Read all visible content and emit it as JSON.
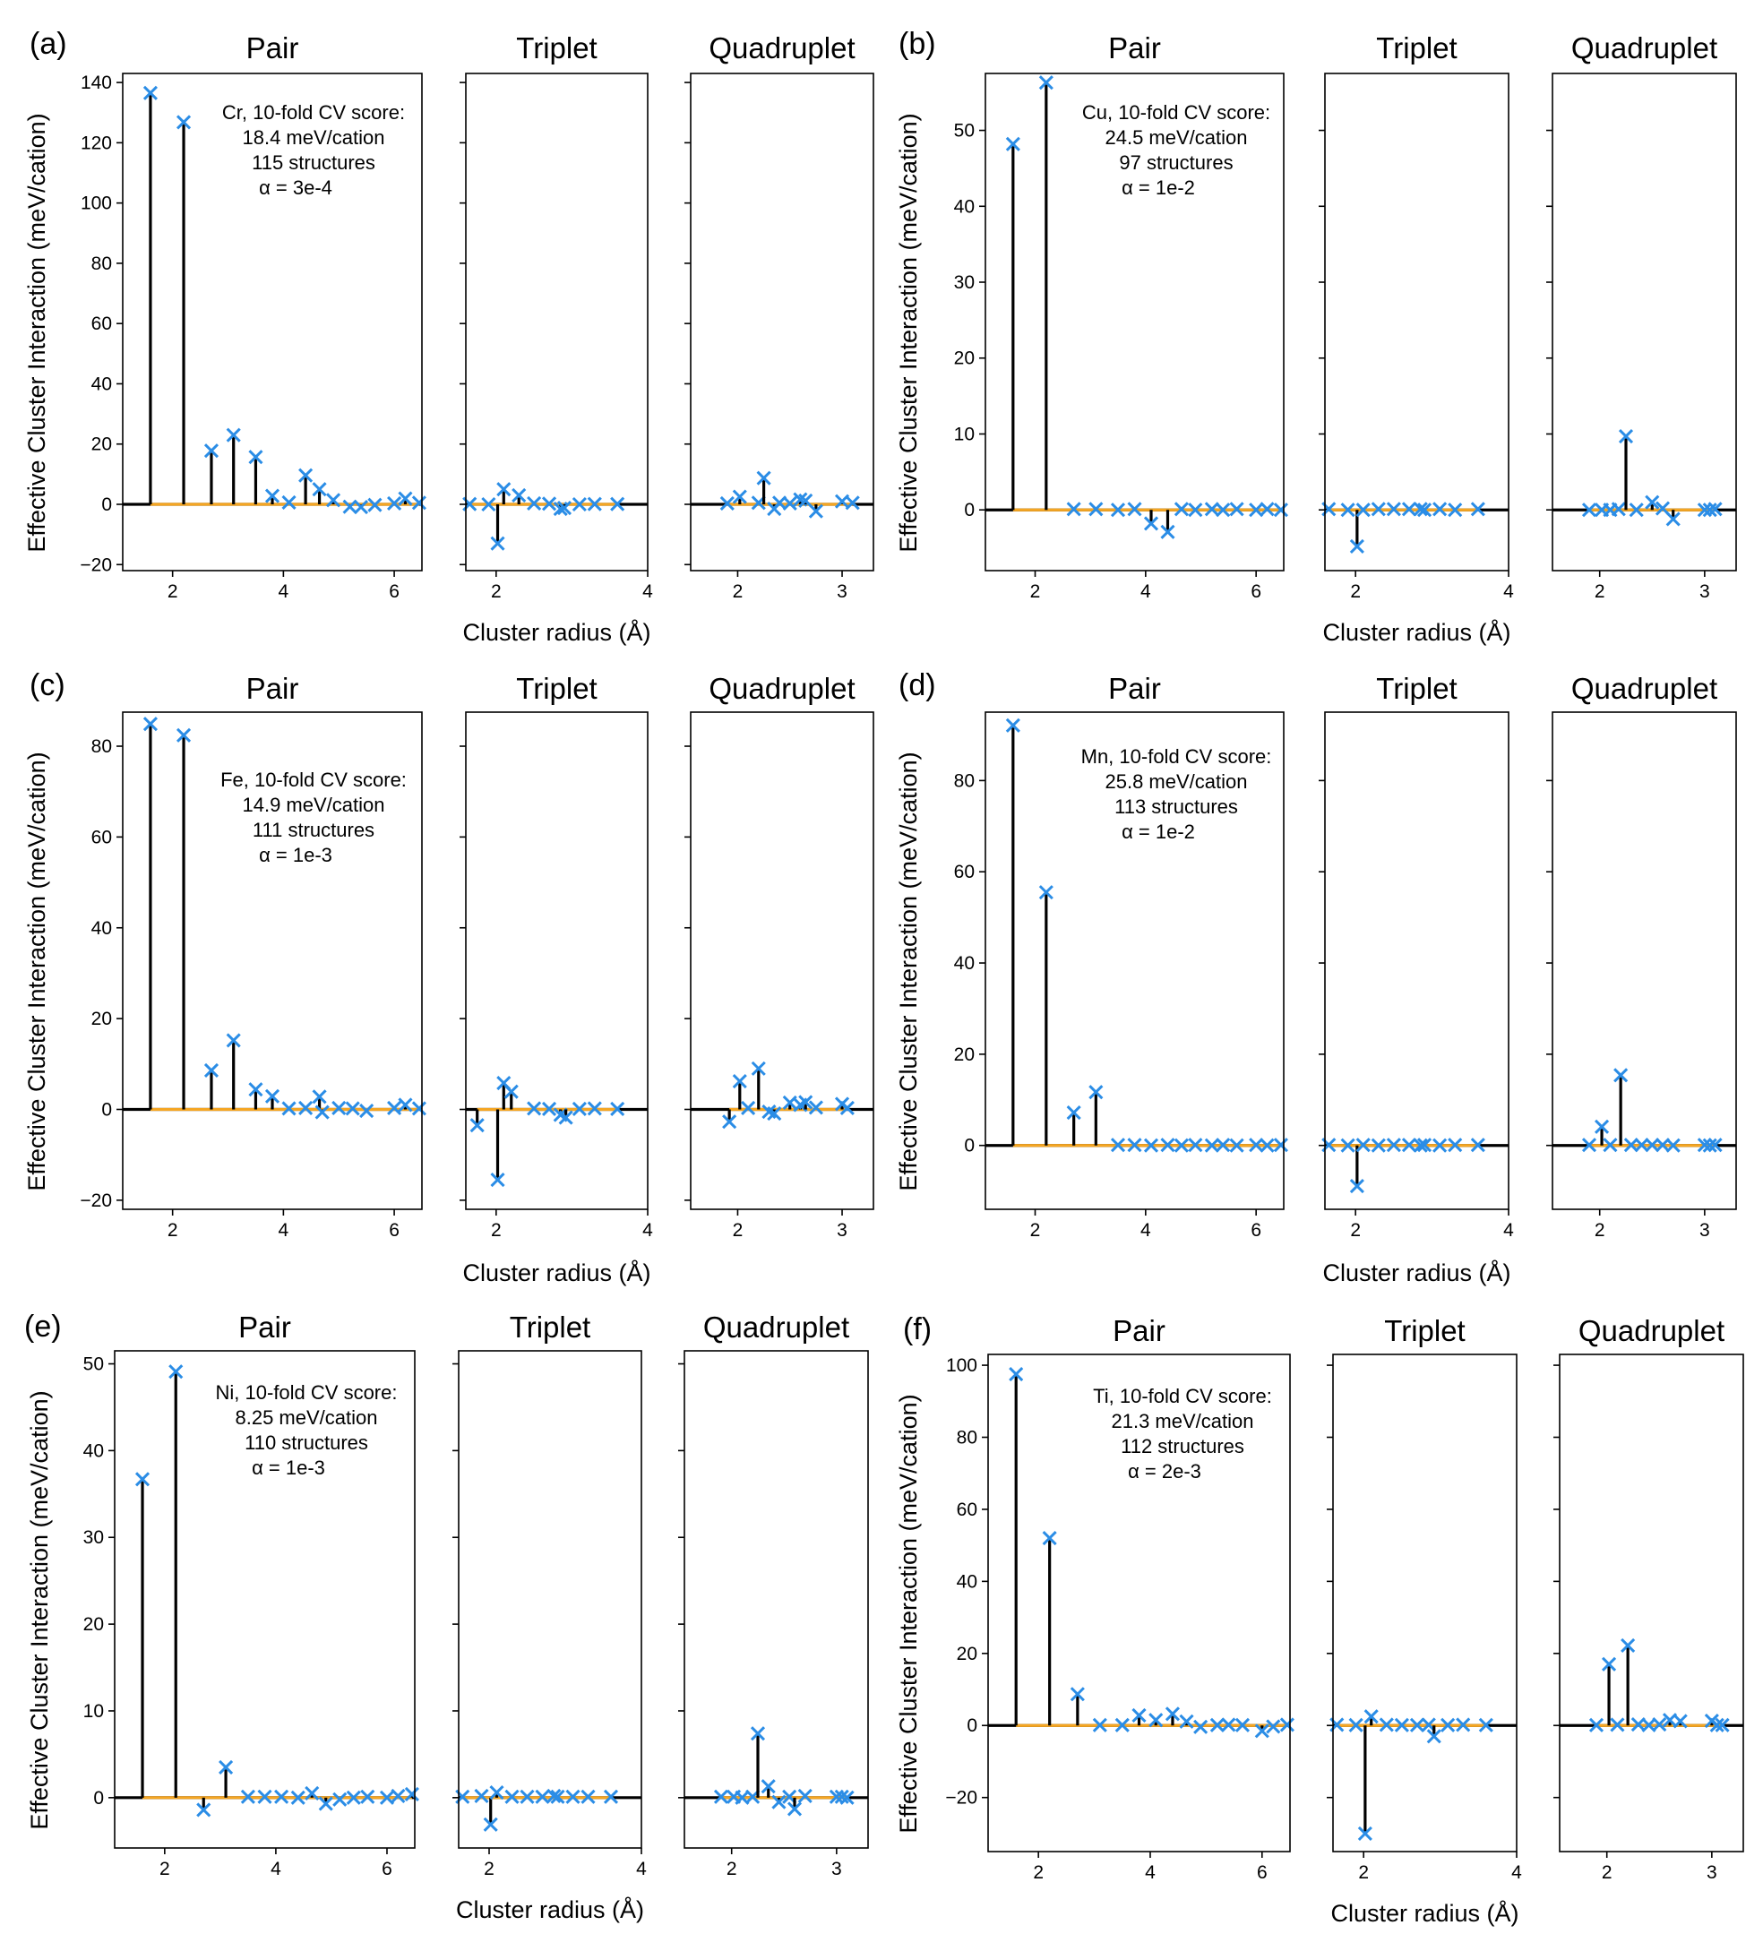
{
  "colors": {
    "marker": "#2b8de6",
    "baseline": "#f5a623",
    "stem": "#000000"
  },
  "chart_data": [
    {
      "panel_label": "(a)",
      "type": "stem",
      "xlabel": "Cluster radius (Å)",
      "ylabel": "Effective Cluster Interaction (meV/cation)",
      "annotation": [
        "Cr, 10-fold CV score:",
        "18.4 meV/cation",
        "115 structures",
        "α = 3e-4"
      ],
      "ylim": [
        -22,
        143
      ],
      "yticks": [
        -20,
        0,
        20,
        40,
        60,
        80,
        100,
        120,
        140
      ],
      "ytick_labels": [
        "−20",
        "0",
        "20",
        "40",
        "60",
        "80",
        "100",
        "120",
        "140"
      ],
      "subplots": [
        {
          "title": "Pair",
          "xlim": [
            1.1,
            6.5
          ],
          "xticks": [
            2,
            4,
            6
          ],
          "xtick_labels": [
            "2",
            "4",
            "6"
          ],
          "x": [
            1.6,
            2.2,
            2.7,
            3.1,
            3.5,
            3.8,
            4.1,
            4.4,
            4.65,
            4.9,
            5.2,
            5.4,
            5.65,
            6.0,
            6.2,
            6.45
          ],
          "y": [
            136.5,
            126.8,
            17.8,
            23.0,
            15.7,
            2.8,
            0.6,
            9.6,
            5.0,
            1.4,
            -0.8,
            -0.9,
            -0.2,
            0.3,
            1.9,
            0.5
          ]
        },
        {
          "title": "Triplet",
          "xlim": [
            1.6,
            4.0
          ],
          "xticks": [
            2,
            4
          ],
          "xtick_labels": [
            "2",
            "4"
          ],
          "x": [
            1.65,
            1.9,
            2.02,
            2.1,
            2.3,
            2.5,
            2.7,
            2.85,
            2.9,
            3.1,
            3.3,
            3.6
          ],
          "y": [
            0.1,
            0.0,
            -13.0,
            5.0,
            3.0,
            0.3,
            0.2,
            -1.5,
            -1.2,
            0.0,
            0.1,
            0.1
          ]
        },
        {
          "title": "Quadruplet",
          "xlim": [
            1.55,
            3.3
          ],
          "xticks": [
            2,
            3
          ],
          "xtick_labels": [
            "2",
            "3"
          ],
          "x": [
            1.9,
            2.02,
            2.2,
            2.25,
            2.35,
            2.4,
            2.5,
            2.6,
            2.65,
            2.75,
            3.0,
            3.1
          ],
          "y": [
            0.3,
            2.5,
            0.5,
            8.7,
            -1.5,
            0.5,
            0.3,
            1.6,
            1.2,
            -2.3,
            1.0,
            0.5
          ]
        }
      ]
    },
    {
      "panel_label": "(b)",
      "type": "stem",
      "xlabel": "Cluster radius (Å)",
      "ylabel": "Effective Cluster Interaction (meV/cation)",
      "annotation": [
        "Cu, 10-fold CV score:",
        "24.5 meV/cation",
        "97 structures",
        "α = 1e-2"
      ],
      "ylim": [
        -8,
        57.5
      ],
      "yticks": [
        0,
        10,
        20,
        30,
        40,
        50
      ],
      "ytick_labels": [
        "0",
        "10",
        "20",
        "30",
        "40",
        "50"
      ],
      "subplots": [
        {
          "title": "Pair",
          "xlim": [
            1.1,
            6.5
          ],
          "xticks": [
            2,
            4,
            6
          ],
          "xtick_labels": [
            "2",
            "4",
            "6"
          ],
          "x": [
            1.6,
            2.2,
            2.7,
            3.1,
            3.5,
            3.8,
            4.1,
            4.4,
            4.65,
            4.9,
            5.2,
            5.4,
            5.65,
            6.0,
            6.2,
            6.45
          ],
          "y": [
            48.2,
            56.3,
            0.1,
            0.1,
            0.0,
            0.1,
            -1.8,
            -2.9,
            0.1,
            0.0,
            0.1,
            0.0,
            0.1,
            0.0,
            0.1,
            0.0
          ]
        },
        {
          "title": "Triplet",
          "xlim": [
            1.6,
            4.0
          ],
          "xticks": [
            2,
            4
          ],
          "xtick_labels": [
            "2",
            "4"
          ],
          "x": [
            1.65,
            1.9,
            2.02,
            2.1,
            2.3,
            2.5,
            2.7,
            2.85,
            2.9,
            3.1,
            3.3,
            3.6
          ],
          "y": [
            0.1,
            0.0,
            -4.8,
            0.0,
            0.1,
            0.1,
            0.1,
            0.1,
            0.0,
            0.1,
            0.0,
            0.1
          ]
        },
        {
          "title": "Quadruplet",
          "xlim": [
            1.55,
            3.3
          ],
          "xticks": [
            2,
            3
          ],
          "xtick_labels": [
            "2",
            "3"
          ],
          "x": [
            1.9,
            2.02,
            2.1,
            2.18,
            2.25,
            2.35,
            2.5,
            2.6,
            2.7,
            3.0,
            3.05,
            3.1
          ],
          "y": [
            0.0,
            0.0,
            0.0,
            0.1,
            9.7,
            0.0,
            1.0,
            0.2,
            -1.2,
            0.0,
            0.0,
            0.1
          ]
        }
      ]
    },
    {
      "panel_label": "(c)",
      "type": "stem",
      "xlabel": "Cluster radius (Å)",
      "ylabel": "Effective Cluster Interaction (meV/cation)",
      "annotation": [
        "Fe, 10-fold CV score:",
        "14.9 meV/cation",
        "111 structures",
        "α = 1e-3"
      ],
      "ylim": [
        -22,
        87.5
      ],
      "yticks": [
        -20,
        0,
        20,
        40,
        60,
        80
      ],
      "ytick_labels": [
        "−20",
        "0",
        "20",
        "40",
        "60",
        "80"
      ],
      "subplots": [
        {
          "title": "Pair",
          "xlim": [
            1.1,
            6.5
          ],
          "xticks": [
            2,
            4,
            6
          ],
          "xtick_labels": [
            "2",
            "4",
            "6"
          ],
          "x": [
            1.6,
            2.2,
            2.7,
            3.1,
            3.5,
            3.8,
            4.1,
            4.4,
            4.65,
            4.7,
            5.0,
            5.25,
            5.5,
            6.0,
            6.2,
            6.45
          ],
          "y": [
            84.9,
            82.4,
            8.6,
            15.2,
            4.4,
            2.9,
            0.2,
            0.3,
            2.8,
            -0.6,
            0.3,
            0.2,
            -0.3,
            0.3,
            1.0,
            0.2
          ]
        },
        {
          "title": "Triplet",
          "xlim": [
            1.6,
            4.0
          ],
          "xticks": [
            2,
            4
          ],
          "xtick_labels": [
            "2",
            "4"
          ],
          "x": [
            1.75,
            2.02,
            2.1,
            2.2,
            2.5,
            2.7,
            2.85,
            2.92,
            3.1,
            3.3,
            3.6
          ],
          "y": [
            -3.5,
            -15.5,
            5.8,
            3.9,
            0.2,
            0.1,
            -1.2,
            -1.8,
            0.1,
            0.2,
            0.1
          ]
        },
        {
          "title": "Quadruplet",
          "xlim": [
            1.55,
            3.3
          ],
          "xticks": [
            2,
            3
          ],
          "xtick_labels": [
            "2",
            "3"
          ],
          "x": [
            1.92,
            2.02,
            2.1,
            2.2,
            2.3,
            2.35,
            2.5,
            2.6,
            2.65,
            2.75,
            3.0,
            3.05
          ],
          "y": [
            -2.7,
            6.2,
            0.3,
            9.0,
            -0.5,
            -0.9,
            1.5,
            1.0,
            1.6,
            0.4,
            1.2,
            0.3
          ]
        }
      ]
    },
    {
      "panel_label": "(d)",
      "type": "stem",
      "xlabel": "Cluster radius (Å)",
      "ylabel": "Effective Cluster Interaction (meV/cation)",
      "annotation": [
        "Mn, 10-fold CV score:",
        "25.8 meV/cation",
        "113 structures",
        "α = 1e-2"
      ],
      "ylim": [
        -14,
        95
      ],
      "yticks": [
        0,
        20,
        40,
        60,
        80
      ],
      "ytick_labels": [
        "0",
        "20",
        "40",
        "60",
        "80"
      ],
      "subplots": [
        {
          "title": "Pair",
          "xlim": [
            1.1,
            6.5
          ],
          "xticks": [
            2,
            4,
            6
          ],
          "xtick_labels": [
            "2",
            "4",
            "6"
          ],
          "x": [
            1.6,
            2.2,
            2.7,
            3.1,
            3.5,
            3.8,
            4.1,
            4.4,
            4.65,
            4.9,
            5.2,
            5.4,
            5.65,
            6.0,
            6.2,
            6.45
          ],
          "y": [
            92.1,
            55.5,
            7.2,
            11.7,
            0.1,
            0.1,
            0.0,
            0.1,
            0.0,
            0.1,
            0.0,
            0.1,
            0.0,
            0.1,
            0.0,
            0.1
          ]
        },
        {
          "title": "Triplet",
          "xlim": [
            1.6,
            4.0
          ],
          "xticks": [
            2,
            4
          ],
          "xtick_labels": [
            "2",
            "4"
          ],
          "x": [
            1.65,
            1.9,
            2.02,
            2.1,
            2.3,
            2.5,
            2.7,
            2.85,
            2.9,
            3.1,
            3.3,
            3.6
          ],
          "y": [
            0.1,
            0.0,
            -8.9,
            0.1,
            0.0,
            0.1,
            0.1,
            0.0,
            0.1,
            0.0,
            0.1,
            0.1
          ]
        },
        {
          "title": "Quadruplet",
          "xlim": [
            1.55,
            3.3
          ],
          "xticks": [
            2,
            3
          ],
          "xtick_labels": [
            "2",
            "3"
          ],
          "x": [
            1.9,
            2.02,
            2.1,
            2.2,
            2.3,
            2.4,
            2.5,
            2.6,
            2.7,
            3.0,
            3.05,
            3.1
          ],
          "y": [
            0.1,
            4.1,
            0.1,
            15.4,
            0.1,
            0.1,
            0.1,
            0.1,
            0.0,
            0.1,
            0.0,
            0.1
          ]
        }
      ]
    },
    {
      "panel_label": "(e)",
      "type": "stem",
      "xlabel": "Cluster radius (Å)",
      "ylabel": "Effective Cluster Interaction (meV/cation)",
      "annotation": [
        "Ni, 10-fold CV score:",
        "8.25 meV/cation",
        "110 structures",
        "α = 1e-3"
      ],
      "ylim": [
        -5.8,
        51.5
      ],
      "yticks": [
        0,
        10,
        20,
        30,
        40,
        50
      ],
      "ytick_labels": [
        "0",
        "10",
        "20",
        "30",
        "40",
        "50"
      ],
      "subplots": [
        {
          "title": "Pair",
          "xlim": [
            1.1,
            6.5
          ],
          "xticks": [
            2,
            4,
            6
          ],
          "xtick_labels": [
            "2",
            "4",
            "6"
          ],
          "x": [
            1.6,
            2.2,
            2.7,
            3.1,
            3.5,
            3.8,
            4.1,
            4.4,
            4.65,
            4.9,
            5.15,
            5.4,
            5.65,
            6.0,
            6.2,
            6.45
          ],
          "y": [
            36.7,
            49.1,
            -1.4,
            3.5,
            0.1,
            0.1,
            0.1,
            0.0,
            0.5,
            -0.7,
            -0.2,
            0.0,
            0.1,
            0.0,
            0.2,
            0.4
          ]
        },
        {
          "title": "Triplet",
          "xlim": [
            1.6,
            4.0
          ],
          "xticks": [
            2,
            4
          ],
          "xtick_labels": [
            "2",
            "4"
          ],
          "x": [
            1.65,
            1.9,
            2.02,
            2.1,
            2.3,
            2.5,
            2.7,
            2.85,
            2.9,
            3.1,
            3.3,
            3.6
          ],
          "y": [
            0.1,
            0.2,
            -3.1,
            0.6,
            0.1,
            0.1,
            0.1,
            0.2,
            0.1,
            0.1,
            0.1,
            0.1
          ]
        },
        {
          "title": "Quadruplet",
          "xlim": [
            1.55,
            3.3
          ],
          "xticks": [
            2,
            3
          ],
          "xtick_labels": [
            "2",
            "3"
          ],
          "x": [
            1.9,
            2.02,
            2.1,
            2.2,
            2.25,
            2.35,
            2.45,
            2.55,
            2.6,
            2.7,
            3.0,
            3.05,
            3.1
          ],
          "y": [
            0.1,
            0.1,
            0.0,
            0.1,
            7.4,
            1.3,
            -0.5,
            0.1,
            -1.3,
            0.2,
            0.1,
            0.1,
            0.0
          ]
        }
      ]
    },
    {
      "panel_label": "(f)",
      "type": "stem",
      "xlabel": "Cluster radius (Å)",
      "ylabel": "Effective Cluster Interaction (meV/cation)",
      "annotation": [
        "Ti, 10-fold CV score:",
        "21.3 meV/cation",
        "112 structures",
        "α = 2e-3"
      ],
      "ylim": [
        -35,
        103
      ],
      "yticks": [
        -20,
        0,
        20,
        40,
        60,
        80,
        100
      ],
      "ytick_labels": [
        "−20",
        "0",
        "20",
        "40",
        "60",
        "80",
        "100"
      ],
      "subplots": [
        {
          "title": "Pair",
          "xlim": [
            1.1,
            6.5
          ],
          "xticks": [
            2,
            4,
            6
          ],
          "xtick_labels": [
            "2",
            "4",
            "6"
          ],
          "x": [
            1.6,
            2.2,
            2.7,
            3.1,
            3.5,
            3.8,
            4.1,
            4.4,
            4.65,
            4.9,
            5.2,
            5.4,
            5.65,
            6.0,
            6.2,
            6.45
          ],
          "y": [
            97.5,
            52.0,
            8.7,
            0.1,
            0.1,
            2.8,
            1.5,
            3.2,
            1.1,
            -0.4,
            0.1,
            0.2,
            0.1,
            -1.5,
            -0.3,
            0.2
          ]
        },
        {
          "title": "Triplet",
          "xlim": [
            1.6,
            4.0
          ],
          "xticks": [
            2,
            4
          ],
          "xtick_labels": [
            "2",
            "4"
          ],
          "x": [
            1.65,
            1.9,
            2.02,
            2.1,
            2.3,
            2.5,
            2.7,
            2.85,
            2.92,
            3.1,
            3.3,
            3.6
          ],
          "y": [
            0.2,
            0.1,
            -30.0,
            2.5,
            0.2,
            0.1,
            0.1,
            0.2,
            -3.0,
            0.1,
            0.2,
            0.1
          ]
        },
        {
          "title": "Quadruplet",
          "xlim": [
            1.55,
            3.3
          ],
          "xticks": [
            2,
            3
          ],
          "xtick_labels": [
            "2",
            "3"
          ],
          "x": [
            1.9,
            2.02,
            2.1,
            2.2,
            2.3,
            2.4,
            2.5,
            2.6,
            2.7,
            3.0,
            3.05,
            3.1
          ],
          "y": [
            0.1,
            17.0,
            0.2,
            22.2,
            0.3,
            0.1,
            0.3,
            1.5,
            1.2,
            1.3,
            0.1,
            0.1
          ]
        }
      ]
    }
  ]
}
